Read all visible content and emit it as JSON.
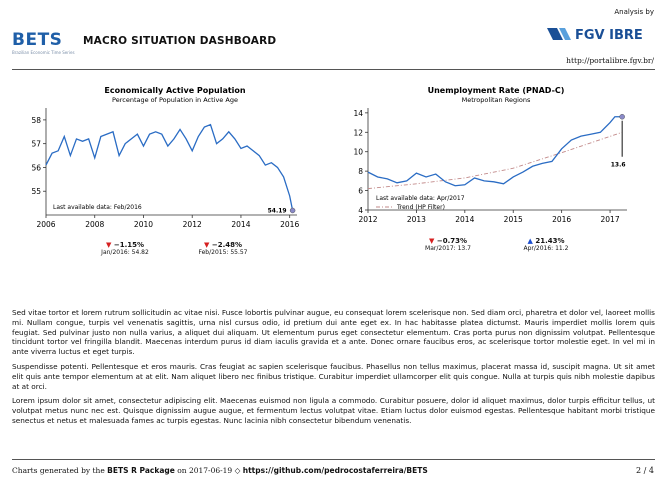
{
  "header": {
    "logo_text": "BETS",
    "logo_subtitle": "Brazilian Economic Time Series",
    "dashboard_title": "MACRO SITUATION DASHBOARD",
    "analysis_by": "Analysis by",
    "partner_logo_text": "FGV IBRE",
    "url": "http://portalibre.fgv.br/",
    "colors": {
      "logo": "#1f5fa8",
      "partner": "#1a4f96"
    }
  },
  "chart_data": [
    {
      "type": "line",
      "title": "Economically Active Population",
      "subtitle": "Percentage of Population in Active Age",
      "x_ticks": [
        2006,
        2008,
        2010,
        2012,
        2014,
        2016
      ],
      "y_ticks": [
        55,
        56,
        57,
        58
      ],
      "xlim": [
        2006.0,
        2016.3
      ],
      "ylim": [
        54.0,
        58.5
      ],
      "x": [
        2006.0,
        2006.25,
        2006.5,
        2006.75,
        2007.0,
        2007.25,
        2007.5,
        2007.75,
        2008.0,
        2008.25,
        2008.5,
        2008.75,
        2009.0,
        2009.25,
        2009.5,
        2009.75,
        2010.0,
        2010.25,
        2010.5,
        2010.75,
        2011.0,
        2011.25,
        2011.5,
        2011.75,
        2012.0,
        2012.25,
        2012.5,
        2012.75,
        2013.0,
        2013.25,
        2013.5,
        2013.75,
        2014.0,
        2014.25,
        2014.5,
        2014.75,
        2015.0,
        2015.25,
        2015.5,
        2015.75,
        2016.0,
        2016.12
      ],
      "values": [
        56.1,
        56.6,
        56.7,
        57.3,
        56.5,
        57.2,
        57.1,
        57.2,
        56.4,
        57.3,
        57.4,
        57.5,
        56.5,
        57.0,
        57.2,
        57.4,
        56.9,
        57.4,
        57.5,
        57.4,
        56.9,
        57.2,
        57.6,
        57.2,
        56.7,
        57.3,
        57.7,
        57.8,
        57.0,
        57.2,
        57.5,
        57.2,
        56.8,
        56.9,
        56.7,
        56.5,
        56.1,
        56.2,
        56.0,
        55.6,
        54.8,
        54.19
      ],
      "color": "#2a6cc4",
      "annotation_last": "Last available data: Feb/2016",
      "last_value_label": "54.19"
    },
    {
      "type": "line",
      "title": "Unemployment Rate (PNAD-C)",
      "subtitle": "Metropolitan Regions",
      "x_ticks": [
        2012,
        2013,
        2014,
        2015,
        2016,
        2017
      ],
      "y_ticks": [
        4,
        6,
        8,
        10,
        12,
        14
      ],
      "xlim": [
        2012.0,
        2017.35
      ],
      "ylim": [
        4.0,
        14.5
      ],
      "x": [
        2012.0,
        2012.2,
        2012.4,
        2012.6,
        2012.8,
        2013.0,
        2013.2,
        2013.4,
        2013.6,
        2013.8,
        2014.0,
        2014.2,
        2014.4,
        2014.6,
        2014.8,
        2015.0,
        2015.2,
        2015.4,
        2015.6,
        2015.8,
        2016.0,
        2016.2,
        2016.4,
        2016.6,
        2016.8,
        2017.0,
        2017.1,
        2017.25
      ],
      "values": [
        7.9,
        7.4,
        7.2,
        6.8,
        7.0,
        7.8,
        7.4,
        7.7,
        6.9,
        6.5,
        6.6,
        7.3,
        7.0,
        6.9,
        6.7,
        7.4,
        7.9,
        8.5,
        8.8,
        9.0,
        10.3,
        11.2,
        11.6,
        11.8,
        12.0,
        13.0,
        13.6,
        13.6
      ],
      "trend": {
        "x": [
          2012.0,
          2013.0,
          2014.0,
          2015.0,
          2016.0,
          2017.25
        ],
        "values": [
          6.2,
          6.7,
          7.3,
          8.3,
          9.9,
          12.0
        ],
        "color": "#c28a8a"
      },
      "color": "#2a6cc4",
      "annotation_last": "Last available data: Apr/2017",
      "legend_trend": "Trend (HP Filter)",
      "last_value_label": "13.6"
    }
  ],
  "stats": {
    "left": [
      {
        "direction": "down",
        "value": "−1.15%",
        "sub": "Jan/2016: 54.82",
        "color": "#d62020"
      },
      {
        "direction": "down",
        "value": "−2.48%",
        "sub": "Feb/2015: 55.57",
        "color": "#d62020"
      }
    ],
    "right": [
      {
        "direction": "down",
        "value": "−0.73%",
        "sub": "Mar/2017: 13.7",
        "color": "#d62020"
      },
      {
        "direction": "up",
        "value": "21.43%",
        "sub": "Apr/2016: 11.2",
        "color": "#1c4fd0"
      }
    ]
  },
  "paragraphs": [
    "Sed vitae tortor et lorem rutrum sollicitudin ac vitae nisi. Fusce lobortis pulvinar augue, eu consequat lorem scelerisque non. Sed diam orci, pharetra et dolor vel, laoreet mollis mi. Nullam congue, turpis vel venenatis sagittis, urna nisl cursus odio, id pretium dui ante eget ex. In hac habitasse platea dictumst. Mauris imperdiet mollis lorem quis feugiat. Sed pulvinar justo non nulla varius, a aliquet dui aliquam. Ut elementum purus eget consectetur elementum. Cras porta purus non dignissim volutpat. Pellentesque tincidunt tortor vel fringilla blandit. Maecenas interdum purus id diam iaculis gravida et a ante. Donec ornare faucibus eros, ac scelerisque tortor molestie eget. In vel mi in ante viverra luctus et eget turpis.",
    "Suspendisse potenti. Pellentesque et eros mauris. Cras feugiat ac sapien scelerisque faucibus. Phasellus non tellus maximus, placerat massa id, suscipit magna. Ut sit amet elit quis ante tempor elementum at at elit. Nam aliquet libero nec finibus tristique. Curabitur imperdiet ullamcorper elit quis congue. Nulla at turpis quis nibh molestie dapibus at at orci.",
    "Lorem ipsum dolor sit amet, consectetur adipiscing elit. Maecenas euismod non ligula a commodo. Curabitur posuere, dolor id aliquet maximus, dolor turpis efficitur tellus, ut volutpat metus nunc nec est. Quisque dignissim augue augue, et fermentum lectus volutpat vitae. Etiam luctus dolor euismod egestas. Pellentesque habitant morbi tristique senectus et netus et malesuada fames ac turpis egestas. Nunc lacinia nibh consectetur bibendum venenatis."
  ],
  "footer": {
    "prefix": "Charts generated by the",
    "package": "BETS R Package",
    "date_text": "on 2017-06-19 ◇",
    "link": "https://github.com/pedrocostaferreira/BETS",
    "page": "2 / 4"
  }
}
